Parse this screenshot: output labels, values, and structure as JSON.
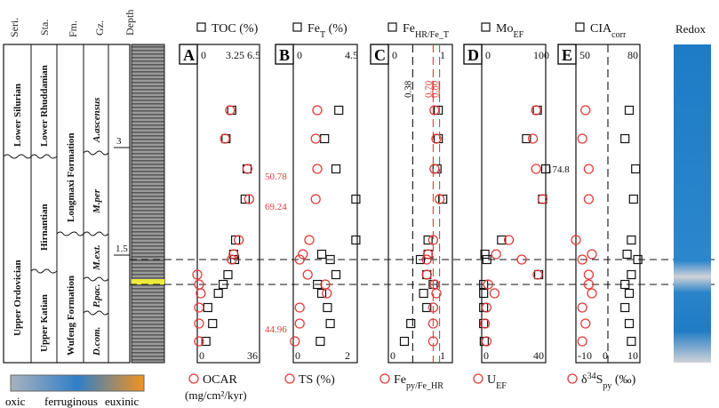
{
  "column_headers": {
    "series": "Seri.",
    "stage": "Sta.",
    "formation": "Fm.",
    "graptolite_zone": "Gz.",
    "depth": "Depth"
  },
  "series_units": [
    "Lower Silurian",
    "Upper Ordovician"
  ],
  "stage_units": [
    "Lower Rhuddanian",
    "Hirnantian",
    "Upper Katian"
  ],
  "formation_units": [
    "Longmaxi Formation",
    "Wufeng Formation"
  ],
  "zone_units": [
    "A.ascensus",
    "M.per",
    "M.ext.",
    "P.pac.",
    "D.com."
  ],
  "depth_ticks": [
    "3",
    "1.5"
  ],
  "redox_label": "Redox",
  "legend_bar": {
    "labels": [
      "oxic",
      "ferruginous",
      "euxinic"
    ],
    "colors": [
      "#aab2bd",
      "#2f7fc9",
      "#f3921f"
    ]
  },
  "colors": {
    "red": "#e03b3b",
    "black": "#111111",
    "redox_blue": "#1a78c2",
    "redox_gray": "#c9ccd2",
    "marker_band": "#ecec3a"
  },
  "chart_data": [
    {
      "panel": "A",
      "type": "scatter",
      "top_label": "TOC (%)",
      "top_ticks": [
        "0",
        "3.25",
        "6.5"
      ],
      "top_range": [
        0,
        6.5
      ],
      "bottom_label": "OCAR",
      "bottom_unit": "(mg/cm²/kyr)",
      "bottom_ticks": [
        "0",
        "36"
      ],
      "bottom_range": [
        0,
        36
      ],
      "squares_TOC": [
        3.6,
        3.0,
        5.2,
        5.0,
        4.0,
        3.8,
        3.9,
        3.2,
        2.7,
        2.2,
        1.1,
        1.6,
        0.9
      ],
      "circles_OCAR": [
        19,
        16,
        29,
        30,
        24,
        21,
        20,
        0,
        1,
        2,
        1,
        1,
        1
      ],
      "annotations": [
        "50.78",
        "69.24",
        "44.96"
      ]
    },
    {
      "panel": "B",
      "type": "scatter",
      "top_label": "Fe_T (%)",
      "top_ticks": [
        "0",
        "4.5"
      ],
      "top_range": [
        0,
        4.5
      ],
      "bottom_label": "TS (%)",
      "bottom_ticks": [
        "0",
        "2"
      ],
      "bottom_range": [
        0,
        2
      ],
      "squares_FeT": [
        3.2,
        2.2,
        3.0,
        4.4,
        4.4,
        2.0,
        2.6,
        3.0,
        1.7,
        2.0,
        2.4,
        2.6,
        1.9
      ],
      "circles_TS": [
        0.75,
        0.7,
        0.75,
        0.7,
        0.5,
        0.3,
        0.2,
        0.45,
        1.0,
        1.05,
        0.2,
        0.2,
        0.05
      ]
    },
    {
      "panel": "C",
      "type": "scatter",
      "top_label": "Fe_HR/Fe_T",
      "top_ticks": [
        "0",
        "1"
      ],
      "top_range": [
        0,
        1
      ],
      "bottom_label": "Fe_py/Fe_HR",
      "bottom_ticks": [
        "0",
        "1"
      ],
      "bottom_range": [
        0,
        1
      ],
      "thresholds": [
        "0.38",
        "0.70",
        "0.80"
      ],
      "squares_FeHR_FeT": [
        0.78,
        0.78,
        0.76,
        0.85,
        0.62,
        0.62,
        0.5,
        0.6,
        0.7,
        0.55,
        0.6,
        0.35,
        0.25
      ],
      "circles_Fepy_FeHR": [
        0.72,
        0.75,
        0.72,
        0.8,
        0.7,
        0.62,
        0.6,
        0.6,
        0.72,
        0.75,
        0.7,
        0.7,
        0.7
      ]
    },
    {
      "panel": "D",
      "type": "scatter",
      "top_label": "Mo_EF",
      "top_ticks": [
        "0",
        "100"
      ],
      "top_range": [
        0,
        100
      ],
      "bottom_label": "U_EF",
      "bottom_ticks": [
        "0",
        "40"
      ],
      "bottom_range": [
        0,
        40
      ],
      "annotations": [
        "174.8"
      ],
      "squares_MoEF": [
        87,
        70,
        100,
        95,
        31,
        5,
        8,
        89,
        3,
        3,
        3,
        3,
        4
      ],
      "circles_UEF": [
        34,
        32,
        34,
        38,
        17,
        9,
        25,
        35,
        4,
        8,
        3,
        2,
        3
      ]
    },
    {
      "panel": "E",
      "type": "scatter",
      "top_label": "CIA_corr",
      "top_ticks": [
        "50",
        "80"
      ],
      "top_range": [
        50,
        80
      ],
      "bottom_label": "δ34S_py (‰)",
      "bottom_ticks": [
        "-10",
        "0",
        "10"
      ],
      "bottom_range": [
        -10,
        10
      ],
      "squares_CIAcorr": [
        75,
        73,
        78,
        77,
        76,
        74,
        79,
        76,
        73,
        75,
        73,
        75,
        76
      ],
      "circles_d34S": [
        -7,
        -8,
        -6,
        -6,
        -10,
        -5,
        -8,
        -6,
        -6,
        -5,
        -8,
        -7,
        -8
      ]
    }
  ]
}
